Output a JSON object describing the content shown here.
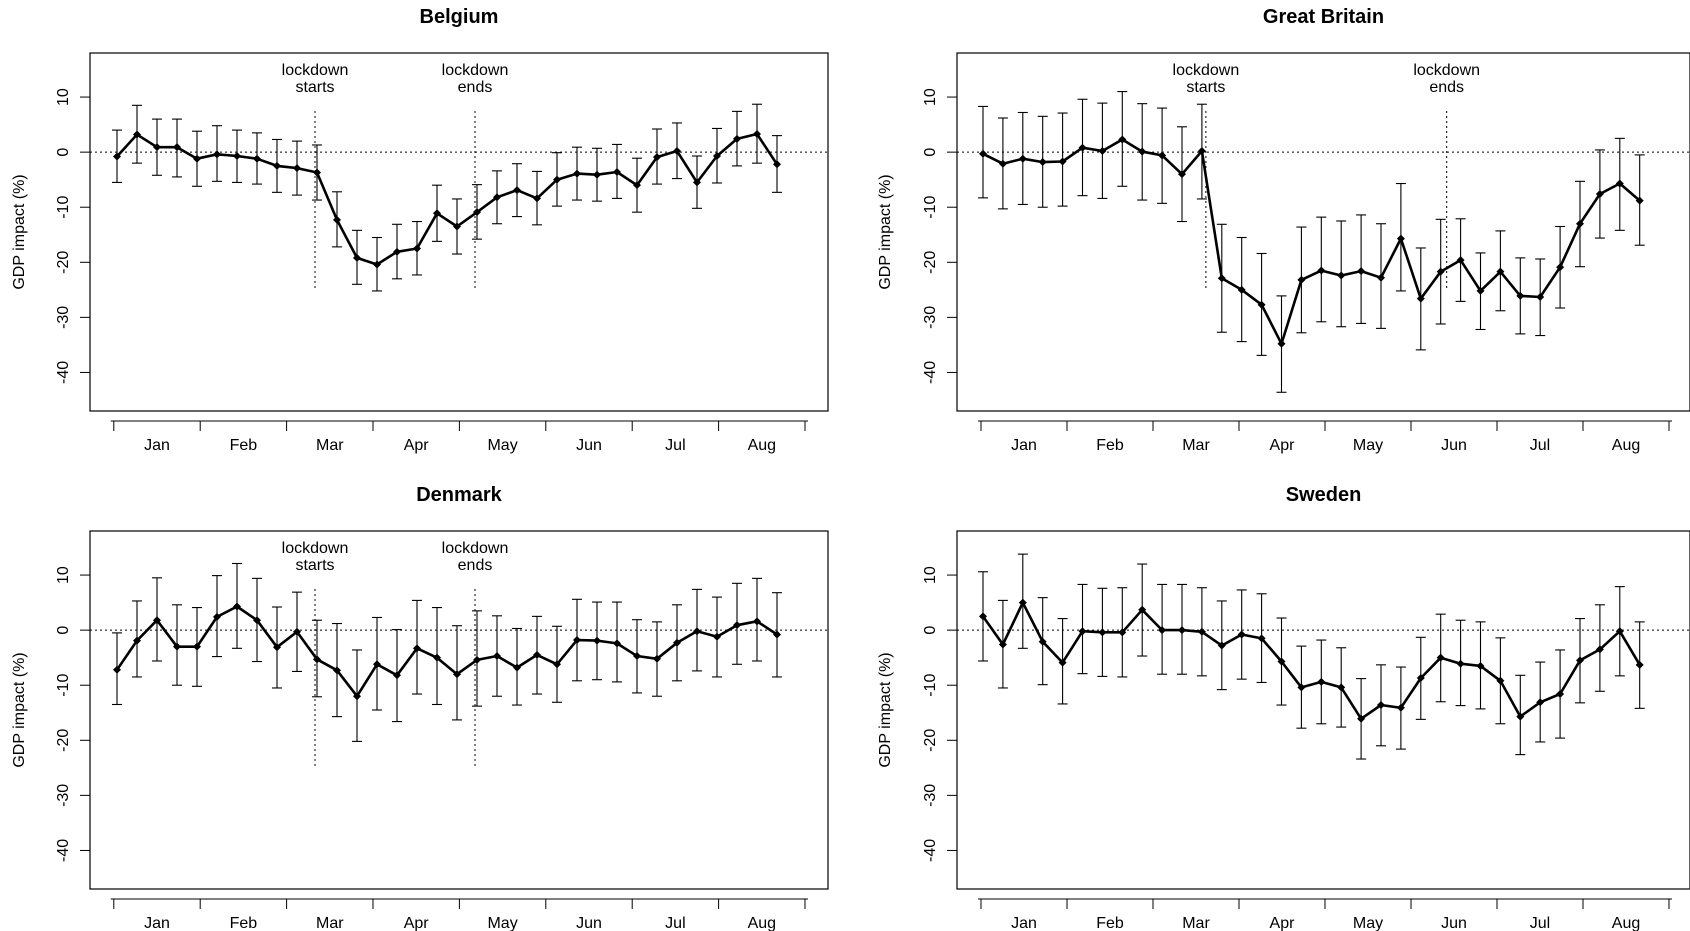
{
  "chart_data": [
    {
      "type": "line",
      "title": "Belgium",
      "ylabel": "GDP impact (%)",
      "ylim": [
        -47,
        18
      ],
      "yticks": [
        10,
        0,
        -10,
        -20,
        -30,
        -40
      ],
      "months": [
        "Jan",
        "Feb",
        "Mar",
        "Apr",
        "May",
        "Jun",
        "Jul",
        "Aug"
      ],
      "annotations": [
        {
          "line1": "lockdown",
          "line2": "starts",
          "week": 9.9
        },
        {
          "line1": "lockdown",
          "line2": "ends",
          "week": 17.9
        }
      ],
      "series": [
        {
          "x": [
            0,
            1,
            2,
            3,
            4,
            5,
            6,
            7,
            8,
            9,
            10,
            11,
            12,
            13,
            14,
            15,
            16,
            17,
            18,
            19,
            20,
            21,
            22,
            23,
            24,
            25,
            26,
            27,
            28,
            29,
            30,
            31,
            32,
            33
          ],
          "values": [
            -0.8,
            3.2,
            0.9,
            0.9,
            -1.2,
            -0.4,
            -0.7,
            -1.2,
            -2.5,
            -2.9,
            -3.7,
            -12.3,
            -19.2,
            -20.4,
            -18.1,
            -17.5,
            -11.1,
            -13.5,
            -10.9,
            -8.2,
            -6.9,
            -8.4,
            -5.0,
            -3.9,
            -4.1,
            -3.6,
            -6.0,
            -0.9,
            0.2,
            -5.5,
            -0.7,
            2.4,
            3.3,
            -2.2
          ],
          "lower": [
            -5.5,
            -2.0,
            -4.2,
            -4.5,
            -6.2,
            -5.3,
            -5.5,
            -5.8,
            -7.3,
            -7.8,
            -8.7,
            -17.2,
            -24.0,
            -25.2,
            -23.0,
            -22.3,
            -16.2,
            -18.5,
            -15.8,
            -13.0,
            -11.7,
            -13.2,
            -9.8,
            -8.7,
            -8.9,
            -8.4,
            -10.9,
            -5.8,
            -4.8,
            -10.2,
            -5.6,
            -2.5,
            -2.0,
            -7.3
          ],
          "upper": [
            4.0,
            8.5,
            6.0,
            6.0,
            3.8,
            4.8,
            4.0,
            3.5,
            2.3,
            2.0,
            1.3,
            -7.2,
            -14.2,
            -15.5,
            -13.1,
            -12.6,
            -6.0,
            -8.5,
            -5.9,
            -3.4,
            -2.1,
            -3.5,
            -0.1,
            0.9,
            0.7,
            1.4,
            -1.1,
            4.2,
            5.3,
            -0.7,
            4.3,
            7.4,
            8.7,
            3.0
          ]
        }
      ]
    },
    {
      "type": "line",
      "title": "Great Britain",
      "ylabel": "GDP impact (%)",
      "ylim": [
        -47,
        18
      ],
      "yticks": [
        10,
        0,
        -10,
        -20,
        -30,
        -40
      ],
      "months": [
        "Jan",
        "Feb",
        "Mar",
        "Apr",
        "May",
        "Jun",
        "Jul",
        "Aug"
      ],
      "annotations": [
        {
          "line1": "lockdown",
          "line2": "starts",
          "week": 11.2
        },
        {
          "line1": "lockdown",
          "line2": "ends",
          "week": 23.3
        }
      ],
      "series": [
        {
          "x": [
            0,
            1,
            2,
            3,
            4,
            5,
            6,
            7,
            8,
            9,
            10,
            11,
            12,
            13,
            14,
            15,
            16,
            17,
            18,
            19,
            20,
            21,
            22,
            23,
            24,
            25,
            26,
            27,
            28,
            29,
            30,
            31,
            32,
            33
          ],
          "values": [
            -0.3,
            -2.1,
            -1.2,
            -1.8,
            -1.7,
            0.8,
            0.2,
            2.3,
            0.1,
            -0.6,
            -4.0,
            0.2,
            -22.9,
            -25.0,
            -27.7,
            -34.8,
            -23.2,
            -21.5,
            -22.4,
            -21.6,
            -22.8,
            -15.7,
            -26.6,
            -21.7,
            -19.6,
            -25.2,
            -21.7,
            -26.1,
            -26.3,
            -20.9,
            -13.0,
            -7.6,
            -5.7,
            -8.8
          ],
          "lower": [
            -8.3,
            -10.3,
            -9.5,
            -10.0,
            -9.8,
            -7.9,
            -8.4,
            -6.2,
            -8.7,
            -9.3,
            -12.6,
            -8.5,
            -32.7,
            -34.4,
            -36.9,
            -43.6,
            -32.8,
            -30.8,
            -31.7,
            -31.1,
            -32.0,
            -25.2,
            -35.9,
            -31.2,
            -27.1,
            -32.2,
            -28.8,
            -33.0,
            -33.3,
            -28.3,
            -20.8,
            -15.6,
            -14.2,
            -16.9
          ],
          "upper": [
            8.3,
            6.2,
            7.2,
            6.5,
            7.1,
            9.6,
            8.9,
            11.0,
            8.8,
            8.0,
            4.6,
            8.7,
            -13.1,
            -15.5,
            -18.4,
            -26.1,
            -13.6,
            -11.8,
            -12.5,
            -11.4,
            -13.0,
            -5.7,
            -17.4,
            -12.2,
            -12.1,
            -18.3,
            -14.3,
            -19.2,
            -19.4,
            -13.5,
            -5.3,
            0.4,
            2.5,
            -0.5
          ]
        }
      ]
    },
    {
      "type": "line",
      "title": "Denmark",
      "ylabel": "GDP impact (%)",
      "ylim": [
        -47,
        18
      ],
      "yticks": [
        10,
        0,
        -10,
        -20,
        -30,
        -40
      ],
      "months": [
        "Jan",
        "Feb",
        "Mar",
        "Apr",
        "May",
        "Jun",
        "Jul",
        "Aug"
      ],
      "annotations": [
        {
          "line1": "lockdown",
          "line2": "starts",
          "week": 9.9
        },
        {
          "line1": "lockdown",
          "line2": "ends",
          "week": 17.9
        }
      ],
      "series": [
        {
          "x": [
            0,
            1,
            2,
            3,
            4,
            5,
            6,
            7,
            8,
            9,
            10,
            11,
            12,
            13,
            14,
            15,
            16,
            17,
            18,
            19,
            20,
            21,
            22,
            23,
            24,
            25,
            26,
            27,
            28,
            29,
            30,
            31,
            32,
            33
          ],
          "values": [
            -7.2,
            -1.9,
            1.8,
            -3.0,
            -3.0,
            2.4,
            4.3,
            1.8,
            -3.1,
            -0.3,
            -5.3,
            -7.3,
            -12.0,
            -6.2,
            -8.2,
            -3.3,
            -5.0,
            -8.0,
            -5.4,
            -4.7,
            -6.8,
            -4.5,
            -6.2,
            -1.8,
            -1.9,
            -2.4,
            -4.7,
            -5.2,
            -2.3,
            -0.2,
            -1.2,
            0.9,
            1.6,
            -0.8
          ],
          "lower": [
            -13.5,
            -8.5,
            -5.6,
            -10.0,
            -10.2,
            -4.8,
            -3.3,
            -5.7,
            -10.5,
            -7.5,
            -12.1,
            -15.7,
            -20.2,
            -14.5,
            -16.6,
            -11.6,
            -13.5,
            -16.3,
            -13.8,
            -12.0,
            -13.6,
            -11.6,
            -13.1,
            -9.2,
            -9.0,
            -9.4,
            -11.4,
            -12.0,
            -9.2,
            -7.4,
            -8.5,
            -6.2,
            -5.6,
            -8.5
          ],
          "upper": [
            -0.5,
            5.3,
            9.5,
            4.6,
            4.1,
            9.9,
            12.1,
            9.4,
            4.2,
            6.9,
            1.8,
            1.2,
            -3.6,
            2.3,
            0.1,
            5.4,
            4.1,
            0.8,
            3.5,
            2.6,
            0.3,
            2.5,
            0.7,
            5.6,
            5.1,
            5.1,
            1.9,
            1.5,
            4.6,
            7.4,
            6.0,
            8.5,
            9.4,
            6.8
          ]
        }
      ]
    },
    {
      "type": "line",
      "title": "Sweden",
      "ylabel": "GDP impact (%)",
      "ylim": [
        -47,
        18
      ],
      "yticks": [
        10,
        0,
        -10,
        -20,
        -30,
        -40
      ],
      "months": [
        "Jan",
        "Feb",
        "Mar",
        "Apr",
        "May",
        "Jun",
        "Jul",
        "Aug"
      ],
      "annotations": [],
      "series": [
        {
          "x": [
            0,
            1,
            2,
            3,
            4,
            5,
            6,
            7,
            8,
            9,
            10,
            11,
            12,
            13,
            14,
            15,
            16,
            17,
            18,
            19,
            20,
            21,
            22,
            23,
            24,
            25,
            26,
            27,
            28,
            29,
            30,
            31,
            32,
            33
          ],
          "values": [
            2.5,
            -2.6,
            5.0,
            -2.1,
            -5.9,
            -0.2,
            -0.4,
            -0.4,
            3.7,
            0.0,
            0.0,
            -0.3,
            -2.8,
            -0.8,
            -1.5,
            -5.7,
            -10.4,
            -9.4,
            -10.4,
            -16.1,
            -13.6,
            -14.1,
            -8.7,
            -5.0,
            -6.1,
            -6.5,
            -9.2,
            -15.7,
            -13.1,
            -11.6,
            -5.5,
            -3.5,
            -0.2,
            -6.3
          ],
          "lower": [
            -5.6,
            -10.5,
            -3.3,
            -9.9,
            -13.4,
            -7.9,
            -8.4,
            -8.5,
            -4.7,
            -8.0,
            -8.0,
            -8.3,
            -10.8,
            -8.9,
            -9.5,
            -13.6,
            -17.8,
            -17.0,
            -17.6,
            -23.4,
            -21.0,
            -21.6,
            -16.2,
            -13.0,
            -13.7,
            -14.3,
            -17.0,
            -22.6,
            -20.3,
            -19.6,
            -13.2,
            -11.1,
            -8.3,
            -14.2
          ],
          "upper": [
            10.6,
            5.4,
            13.8,
            5.9,
            2.1,
            8.3,
            7.6,
            7.7,
            12.0,
            8.3,
            8.3,
            7.7,
            5.3,
            7.3,
            6.6,
            2.2,
            -2.9,
            -1.8,
            -3.2,
            -8.8,
            -6.3,
            -6.7,
            -1.3,
            2.9,
            1.8,
            1.5,
            -1.4,
            -8.2,
            -5.8,
            -3.6,
            2.1,
            4.6,
            7.9,
            1.5
          ]
        }
      ]
    }
  ]
}
